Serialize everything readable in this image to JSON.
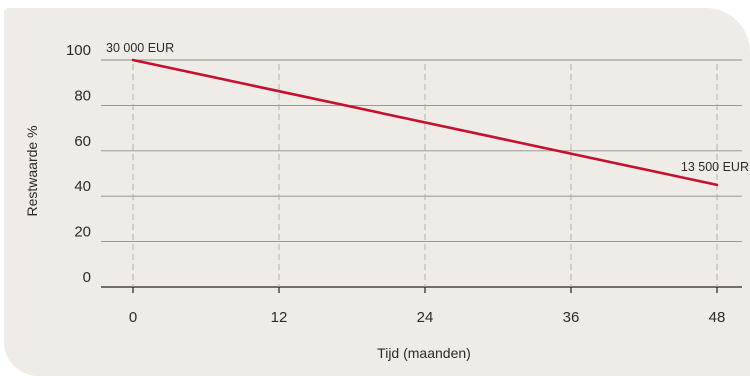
{
  "chart_data": {
    "type": "line",
    "xlabel": "Tijd (maanden)",
    "ylabel": "Restwaarde %",
    "x_ticks": [
      0,
      12,
      24,
      36,
      48
    ],
    "y_ticks": [
      0,
      20,
      40,
      60,
      80,
      100
    ],
    "xlim": [
      0,
      48
    ],
    "ylim": [
      0,
      100
    ],
    "grid": "horizontal solid; vertical dashed at x ticks",
    "series": [
      {
        "x": [
          0,
          48
        ],
        "y": [
          100,
          45
        ],
        "color": "#c8102e"
      }
    ],
    "annotations": [
      {
        "text": "30 000 EUR",
        "x": 0,
        "y": 100
      },
      {
        "text": "13 500 EUR",
        "x": 48,
        "y": 45
      }
    ],
    "colors": {
      "line": "#c8102e",
      "grid": "#8c8c8c",
      "background": "#efece7"
    }
  }
}
